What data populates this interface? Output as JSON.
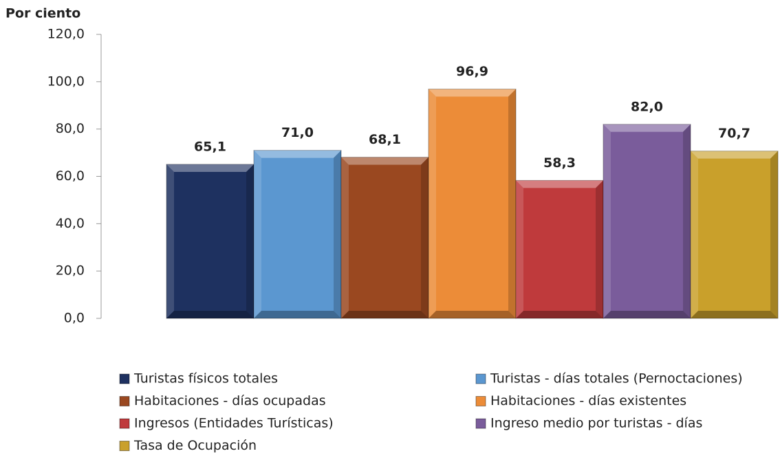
{
  "chart_data": {
    "type": "bar",
    "y_label": "Por ciento",
    "categories": [
      null
    ],
    "series": [
      {
        "name": "Turistas físicos totales",
        "color": "#1e3160",
        "values": [
          65.1
        ],
        "value_labels": [
          "65,1"
        ]
      },
      {
        "name": "Turistas - días totales (Pernoctaciones)",
        "color": "#5b97d0",
        "values": [
          71.0
        ],
        "value_labels": [
          "71,0"
        ]
      },
      {
        "name": "Habitaciones - días ocupadas",
        "color": "#9a4820",
        "values": [
          68.1
        ],
        "value_labels": [
          "68,1"
        ]
      },
      {
        "name": "Habitaciones - días existentes",
        "color": "#ec8c38",
        "values": [
          96.9
        ],
        "value_labels": [
          "96,9"
        ]
      },
      {
        "name": "Ingresos (Entidades Turísticas)",
        "color": "#bf3a3c",
        "values": [
          58.3
        ],
        "value_labels": [
          "58,3"
        ]
      },
      {
        "name": "Ingreso medio por turistas - días",
        "color": "#7a5c9b",
        "values": [
          82.0
        ],
        "value_labels": [
          "82,0"
        ]
      },
      {
        "name": "Tasa de Ocupación",
        "color": "#c9a02b",
        "values": [
          70.7
        ],
        "value_labels": [
          "70,7"
        ]
      }
    ],
    "ylim": [
      0,
      120
    ],
    "yticks": [
      {
        "value": 0,
        "label": "0,0"
      },
      {
        "value": 20,
        "label": "20,0"
      },
      {
        "value": 40,
        "label": "40,0"
      },
      {
        "value": 60,
        "label": "60,0"
      },
      {
        "value": 80,
        "label": "80,0"
      },
      {
        "value": 100,
        "label": "100,0"
      },
      {
        "value": 120,
        "label": "120,0"
      }
    ],
    "grid": false,
    "legend": "bottom"
  }
}
